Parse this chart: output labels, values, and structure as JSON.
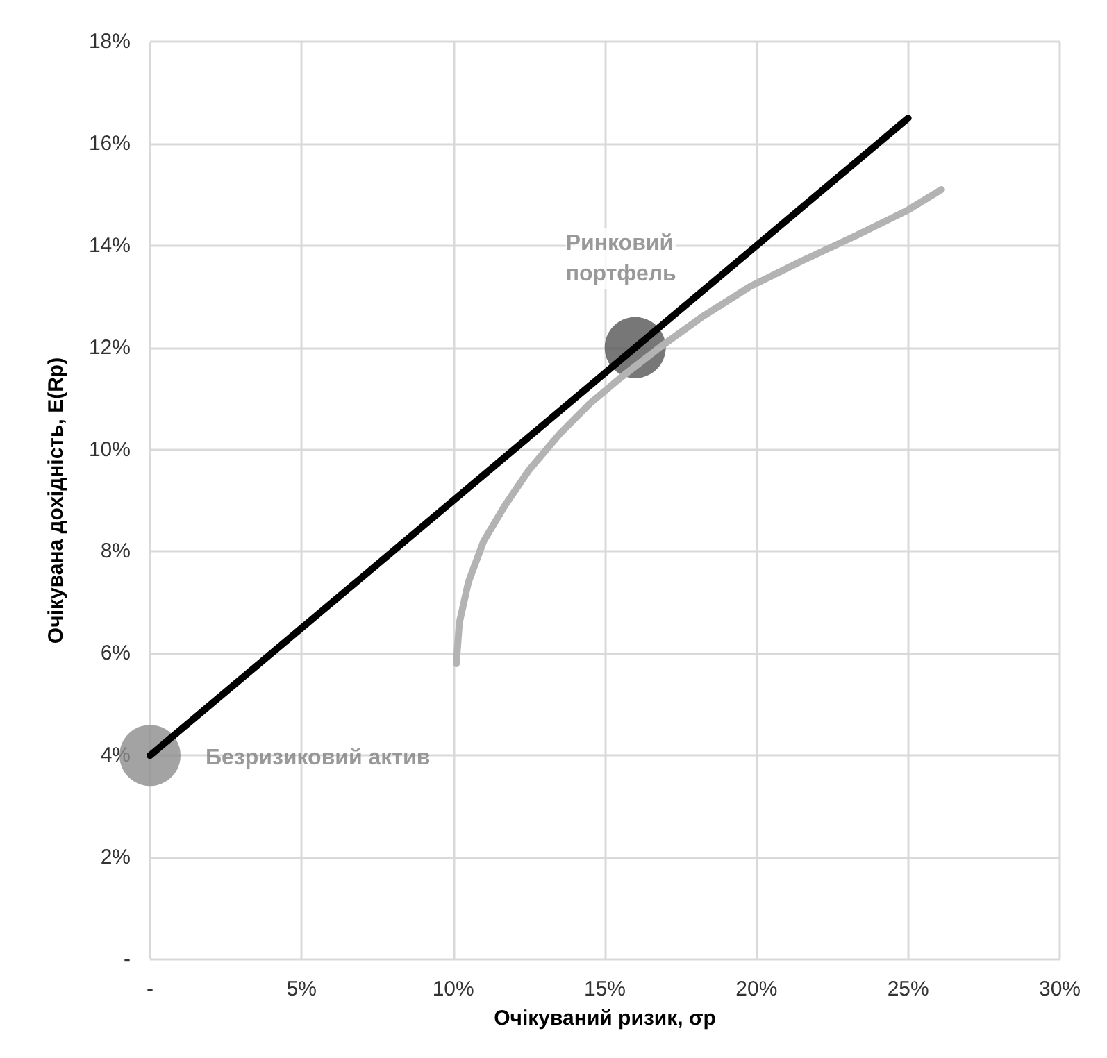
{
  "chart_data": {
    "type": "line",
    "xlabel": "Очікуваний ризик, σp",
    "ylabel": "Очікувана дохідність, E(Rp)",
    "xlim": [
      0,
      30
    ],
    "ylim": [
      0,
      18
    ],
    "xticks": [
      {
        "value": 0,
        "label": "-"
      },
      {
        "value": 5,
        "label": "5%"
      },
      {
        "value": 10,
        "label": "10%"
      },
      {
        "value": 15,
        "label": "15%"
      },
      {
        "value": 20,
        "label": "20%"
      },
      {
        "value": 25,
        "label": "25%"
      },
      {
        "value": 30,
        "label": "30%"
      }
    ],
    "yticks": [
      {
        "value": 0,
        "label": "-"
      },
      {
        "value": 2,
        "label": "2%"
      },
      {
        "value": 4,
        "label": "4%"
      },
      {
        "value": 6,
        "label": "6%"
      },
      {
        "value": 8,
        "label": "8%"
      },
      {
        "value": 10,
        "label": "10%"
      },
      {
        "value": 12,
        "label": "12%"
      },
      {
        "value": 14,
        "label": "14%"
      },
      {
        "value": 16,
        "label": "16%"
      },
      {
        "value": 18,
        "label": "18%"
      }
    ],
    "grid": true,
    "line_style": "solid",
    "marker": "none",
    "series": [
      {
        "color": "#b3b3b3",
        "x": [
          10.1,
          10.2,
          10.5,
          11.0,
          11.7,
          12.5,
          13.5,
          14.5,
          15.5,
          16.8,
          18.2,
          19.8,
          21.5,
          23.3,
          25.0,
          26.1
        ],
        "values": [
          5.8,
          6.6,
          7.4,
          8.2,
          8.9,
          9.6,
          10.3,
          10.9,
          11.4,
          12.0,
          12.6,
          13.2,
          13.7,
          14.2,
          14.7,
          15.1
        ]
      },
      {
        "color": "#000000",
        "x": [
          0,
          25
        ],
        "values": [
          4,
          16.5
        ]
      },
      {
        "type": "scatter",
        "marker": "circle",
        "color": "#8c8c8c",
        "x": [
          0
        ],
        "values": [
          4
        ]
      },
      {
        "type": "scatter",
        "marker": "circle",
        "color": "#555555",
        "x": [
          16
        ],
        "values": [
          12
        ]
      }
    ],
    "annotations": [
      {
        "text": "Ринковий\nпортфель",
        "x": 16,
        "y": 12
      },
      {
        "text": "Безризиковий актив",
        "x": 0,
        "y": 4
      }
    ]
  }
}
